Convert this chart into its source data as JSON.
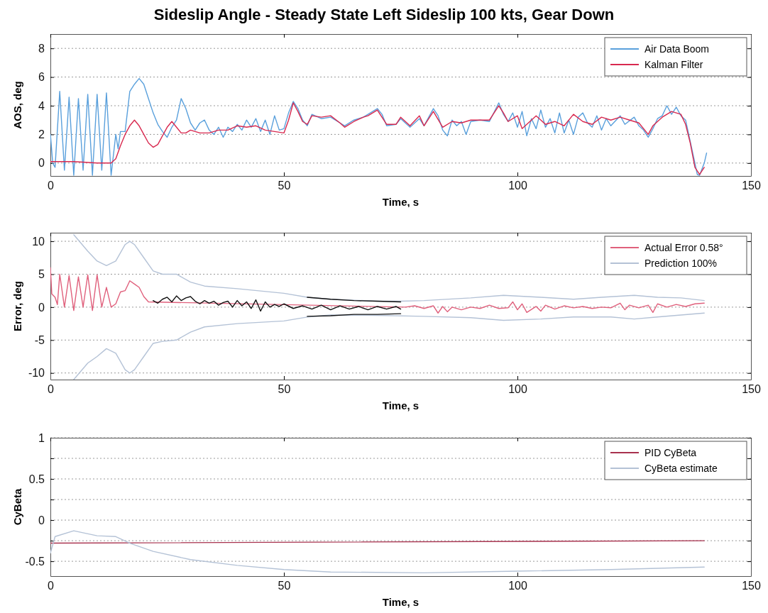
{
  "chart_data": [
    {
      "type": "line",
      "title": "Sideslip Angle - Steady State Left Sideslip 100 kts, Gear Down",
      "xlabel": "Time, s",
      "ylabel": "AOS, deg",
      "xlim": [
        0,
        150
      ],
      "xticks": [
        0,
        50,
        100,
        150
      ],
      "ylim": [
        -0.9,
        9
      ],
      "yticks": [
        0,
        2,
        4,
        6,
        8
      ],
      "grid": "y",
      "legend": "top right",
      "series": [
        {
          "name": "Air Data Boom",
          "color": "#5aa0dc",
          "x": [
            0,
            0.5,
            1,
            2,
            3,
            4,
            5,
            6,
            7,
            8,
            9,
            10,
            11,
            12,
            13,
            14,
            14.5,
            15,
            16,
            17,
            18,
            19,
            20,
            21,
            22,
            23,
            24,
            25,
            26,
            27,
            28,
            29,
            30,
            31,
            32,
            33,
            34,
            35,
            36,
            37,
            38,
            39,
            40,
            41,
            42,
            43,
            44,
            45,
            46,
            47,
            48,
            49,
            50,
            51,
            52,
            53,
            54,
            55,
            56,
            58,
            60,
            62,
            63,
            65,
            67,
            68,
            70,
            71,
            72,
            74,
            75,
            77,
            79,
            80,
            82,
            83,
            84,
            85,
            86,
            87,
            88,
            89,
            90,
            92,
            94,
            96,
            97,
            98,
            99,
            100,
            101,
            102,
            103,
            104,
            105,
            106,
            107,
            108,
            109,
            110,
            111,
            112,
            113,
            114,
            115,
            116,
            117,
            118,
            119,
            120,
            122,
            123,
            125,
            126,
            127,
            128,
            129,
            130,
            131,
            132,
            133,
            134,
            135,
            136,
            137,
            138,
            138.5,
            139,
            140,
            140.5
          ],
          "values": [
            2,
            0,
            -0.3,
            5,
            -0.5,
            4.6,
            -0.85,
            4.5,
            -0.5,
            4.8,
            -0.85,
            4.8,
            -0.5,
            4.9,
            -0.85,
            2,
            1,
            2.2,
            2.2,
            5,
            5.5,
            5.9,
            5.5,
            4.5,
            3.5,
            2.7,
            2.2,
            1.8,
            2.5,
            3,
            4.5,
            3.8,
            2.8,
            2.3,
            2.8,
            3,
            2.3,
            2,
            2.5,
            1.8,
            2.5,
            2.2,
            2.7,
            2.3,
            3,
            2.5,
            3.1,
            2.2,
            3,
            2,
            3.3,
            2.3,
            2.4,
            3.5,
            4.3,
            3.8,
            3,
            2.6,
            3.4,
            3.1,
            3.2,
            2.8,
            2.6,
            3,
            3.2,
            3.4,
            3.8,
            3.4,
            2.6,
            2.7,
            3.1,
            2.5,
            3.1,
            2.6,
            3.8,
            3.3,
            2.3,
            1.9,
            3,
            2.6,
            2.9,
            2,
            2.9,
            3,
            2.9,
            4.2,
            3.4,
            2.9,
            3.5,
            2.5,
            3.6,
            1.9,
            3.1,
            2.4,
            3.7,
            2.5,
            3.1,
            2.1,
            3.5,
            2.1,
            3,
            2,
            3.2,
            3.5,
            2.8,
            2.5,
            3.3,
            2.3,
            3.1,
            2.6,
            3.3,
            2.7,
            3.2,
            2.6,
            2.3,
            1.8,
            2.4,
            3.1,
            3.3,
            4,
            3.4,
            3.9,
            3.3,
            3,
            1.5,
            0,
            -0.8,
            -0.85,
            0,
            0.7
          ]
        },
        {
          "name": "Kalman Filter",
          "color": "#d8294f",
          "x": [
            0,
            5,
            10,
            13,
            14,
            15,
            16,
            17,
            18,
            19,
            20,
            21,
            22,
            23,
            24,
            25,
            26,
            27,
            28,
            29,
            30,
            32,
            34,
            36,
            38,
            40,
            42,
            44,
            46,
            48,
            50,
            51,
            52,
            53,
            54,
            55,
            56,
            58,
            60,
            62,
            63,
            65,
            67,
            68,
            70,
            72,
            74,
            75,
            77,
            79,
            80,
            82,
            84,
            86,
            88,
            90,
            92,
            94,
            96,
            97,
            98,
            100,
            101,
            102,
            104,
            106,
            108,
            110,
            112,
            114,
            116,
            118,
            120,
            122,
            124,
            126,
            128,
            129,
            131,
            133,
            135,
            136,
            137,
            138,
            139,
            140
          ],
          "values": [
            0.1,
            0.1,
            0,
            0,
            0.3,
            1.2,
            2,
            2.6,
            3,
            2.6,
            2,
            1.4,
            1.1,
            1.3,
            1.9,
            2.5,
            2.9,
            2.5,
            2.1,
            2.1,
            2.3,
            2.1,
            2.1,
            2.3,
            2.3,
            2.6,
            2.5,
            2.6,
            2.3,
            2.2,
            2.1,
            3,
            4.2,
            3.6,
            2.9,
            2.7,
            3.3,
            3.2,
            3.3,
            2.8,
            2.5,
            2.9,
            3.2,
            3.3,
            3.7,
            2.7,
            2.7,
            3.2,
            2.6,
            3.3,
            2.6,
            3.6,
            2.5,
            2.9,
            2.8,
            3,
            3,
            3,
            4,
            3.5,
            2.9,
            3.3,
            2.4,
            2.7,
            3.3,
            2.7,
            2.9,
            2.6,
            3.4,
            2.9,
            2.7,
            3.2,
            3,
            3.2,
            3,
            2.8,
            2,
            2.6,
            3.2,
            3.6,
            3.4,
            2.7,
            1.4,
            -0.3,
            -0.8,
            -0.3
          ]
        }
      ]
    },
    {
      "type": "line",
      "xlabel": "Time, s",
      "ylabel": "Error, deg",
      "xlim": [
        0,
        150
      ],
      "xticks": [
        0,
        50,
        100,
        150
      ],
      "ylim": [
        -11,
        11.3
      ],
      "yticks": [
        -10,
        -5,
        0,
        5,
        10
      ],
      "grid": "y",
      "legend": "top right",
      "series": [
        {
          "name": "Actual Error 0.58°",
          "color": "#e0607c",
          "x": [
            0,
            0.3,
            1,
            1.5,
            2,
            3,
            4,
            5,
            6,
            7,
            8,
            9,
            10,
            11,
            12,
            13,
            14,
            15,
            16,
            17,
            18,
            19,
            20,
            21,
            76,
            78,
            80,
            82,
            83,
            84,
            85,
            86,
            88,
            90,
            92,
            94,
            96,
            98,
            99,
            100,
            101,
            102,
            104,
            105,
            106,
            108,
            110,
            112,
            114,
            116,
            118,
            120,
            122,
            123,
            124,
            126,
            128,
            129,
            130,
            132,
            134,
            136,
            138,
            140
          ],
          "values": [
            6,
            2,
            1.5,
            0.4,
            5,
            0,
            4.8,
            -0.5,
            4.6,
            0,
            4.9,
            -0.5,
            4.9,
            0,
            3,
            0,
            0.5,
            2.3,
            2.5,
            4,
            3.5,
            3,
            1.6,
            0.8,
            0,
            0.2,
            -0.2,
            0.2,
            -0.9,
            0.1,
            -0.7,
            0,
            -0.4,
            0,
            -0.2,
            0.3,
            -0.2,
            -0.1,
            0.8,
            -0.4,
            0.5,
            -0.8,
            0.1,
            -0.6,
            0.3,
            -0.3,
            0.2,
            -0.1,
            0.1,
            -0.2,
            0,
            -0.1,
            0.6,
            -0.4,
            0.3,
            -0.1,
            0.3,
            -0.8,
            0.5,
            0,
            0.4,
            0.1,
            0.5,
            0.6
          ]
        },
        {
          "color": "#111111",
          "x": [
            22,
            23,
            24,
            25,
            26,
            27,
            28,
            29,
            30,
            31,
            32,
            33,
            34,
            35,
            36,
            37,
            38,
            39,
            40,
            41,
            42,
            43,
            44,
            45,
            46,
            47,
            48,
            49,
            50,
            52,
            54,
            56,
            58,
            60,
            62,
            64,
            66,
            68,
            70,
            72,
            74,
            75
          ],
          "values": [
            1,
            0.6,
            1.2,
            1.5,
            0.8,
            1.7,
            1,
            1.4,
            1.6,
            0.9,
            0.5,
            1,
            0.6,
            0.9,
            0.3,
            0.7,
            0.9,
            0,
            1,
            0.2,
            0.8,
            -0.2,
            1.1,
            -0.6,
            0.8,
            0,
            0.4,
            0.1,
            0.5,
            -0.2,
            0.2,
            -0.3,
            0.3,
            -0.4,
            0.2,
            -0.3,
            0.1,
            -0.4,
            0.1,
            -0.3,
            0.1,
            -0.3
          ]
        },
        {
          "name": "Prediction 100%",
          "color": "#b4c2d6",
          "x": [
            5,
            8,
            10,
            12,
            14,
            16,
            17,
            18,
            20,
            22,
            24,
            27,
            30,
            33,
            40,
            50,
            55,
            60,
            70,
            75,
            80,
            90,
            97,
            105,
            112,
            118,
            125,
            130,
            135,
            140
          ],
          "values": [
            11,
            8.5,
            7,
            6.3,
            7,
            9.5,
            10,
            9.5,
            7.5,
            5.5,
            5,
            5,
            3.8,
            3.2,
            2.8,
            2.1,
            1.5,
            1.2,
            0.9,
            0.9,
            1,
            1.4,
            1.8,
            1.5,
            1.2,
            1.5,
            1.8,
            1.5,
            1.4,
            1
          ]
        },
        {
          "color": "#b4c2d6",
          "x": [
            5,
            8,
            10,
            12,
            14,
            16,
            17,
            18,
            20,
            22,
            24,
            27,
            30,
            33,
            40,
            50,
            55,
            60,
            70,
            80,
            90,
            97,
            105,
            112,
            120,
            125,
            130,
            135,
            140
          ],
          "values": [
            -11,
            -8.5,
            -7.5,
            -6.3,
            -7,
            -9.5,
            -10,
            -9.5,
            -7.5,
            -5.5,
            -5.2,
            -5,
            -3.8,
            -3,
            -2.5,
            -2.1,
            -1.5,
            -1.2,
            -1.25,
            -1.4,
            -1.6,
            -2,
            -1.8,
            -1.5,
            -1.5,
            -1.8,
            -1.5,
            -1.2,
            -0.9
          ]
        },
        {
          "color": "#111111",
          "x": [
            55,
            60,
            65,
            70,
            75
          ],
          "values": [
            1.5,
            1.2,
            1,
            0.9,
            0.8
          ]
        },
        {
          "color": "#111111",
          "x": [
            55,
            60,
            65,
            70,
            75
          ],
          "values": [
            -1.4,
            -1.3,
            -1.1,
            -1.1,
            -1
          ]
        }
      ]
    },
    {
      "type": "line",
      "xlabel": "Time, s",
      "ylabel": "CyBeta",
      "xlim": [
        0,
        150
      ],
      "xticks": [
        0,
        50,
        100,
        150
      ],
      "ylim": [
        -0.68,
        1
      ],
      "yticks": [
        -0.5,
        {
          "value": -0.25,
          "label": null
        },
        0,
        {
          "value": 0.25,
          "label": null
        },
        0.5,
        {
          "value": 0.75,
          "label": null
        },
        1
      ],
      "grid": "y",
      "legend": "top right",
      "series": [
        {
          "name": "PID CyBeta",
          "color": "#a8324e",
          "x": [
            0,
            140
          ],
          "values": [
            -0.28,
            -0.25
          ]
        },
        {
          "name": "CyBeta estimate",
          "color": "#b4c2d6",
          "x": [
            0,
            1,
            5,
            10,
            14,
            17,
            22,
            30,
            40,
            50,
            60,
            80,
            100,
            120,
            140
          ],
          "values": [
            -0.4,
            -0.2,
            -0.13,
            -0.19,
            -0.2,
            -0.28,
            -0.38,
            -0.48,
            -0.55,
            -0.6,
            -0.63,
            -0.64,
            -0.62,
            -0.6,
            -0.57
          ]
        }
      ]
    }
  ]
}
